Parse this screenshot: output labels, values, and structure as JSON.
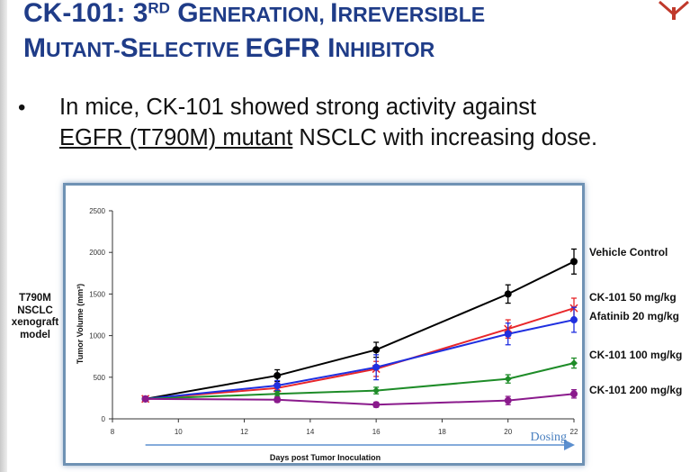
{
  "slide": {
    "title_prefix": "CK-101: 3",
    "title_sup": "RD",
    "title_line1_rest_big": " G",
    "title_line1_rest_small": "ENERATION, ",
    "title_line1_irr_big": "I",
    "title_line1_irr_small": "RREVERSIBLE",
    "title_line2_m_big": "M",
    "title_line2_m_small": "UTANT-",
    "title_line2_s_big": "S",
    "title_line2_s_small": "ELECTIVE ",
    "title_line2_egfr": "EGFR ",
    "title_line2_i_big": "I",
    "title_line2_i_small": "NHIBITOR",
    "bullet": "•",
    "bullet_text_1": "In mice, CK-101 showed strong activity against",
    "bullet_text_underlined": "EGFR (T790M) mutant",
    "bullet_text_2": " NSCLC with increasing dose.",
    "side_label_lines": [
      "T790M",
      "NSCLC",
      "xenograft",
      "model"
    ]
  },
  "chart_data": {
    "type": "line",
    "title": "",
    "xlabel": "Days post Tumor Inoculation",
    "ylabel": "Tumor Volume (mm³)",
    "xlim": [
      8,
      22
    ],
    "ylim": [
      0,
      2500
    ],
    "x_ticks": [
      8,
      10,
      12,
      14,
      16,
      18,
      20,
      22
    ],
    "y_ticks": [
      0,
      500,
      1000,
      1500,
      2000,
      2500
    ],
    "x": [
      9,
      13,
      16,
      20,
      22
    ],
    "series": [
      {
        "name": "Vehicle Control",
        "color": "#000000",
        "marker": "circle",
        "values": [
          240,
          520,
          830,
          1500,
          1890
        ],
        "errors": [
          20,
          70,
          90,
          110,
          150
        ]
      },
      {
        "name": "CK-101 50 mg/kg",
        "color": "#e8262a",
        "marker": "x",
        "values": [
          240,
          370,
          600,
          1080,
          1330
        ],
        "errors": [
          20,
          60,
          90,
          110,
          120
        ]
      },
      {
        "name": "Afatinib 20 mg/kg",
        "color": "#1f2fe0",
        "marker": "circle",
        "values": [
          240,
          400,
          620,
          1020,
          1190
        ],
        "errors": [
          20,
          60,
          150,
          130,
          150
        ]
      },
      {
        "name": "CK-101 100 mg/kg",
        "color": "#1e8c28",
        "marker": "diamond",
        "values": [
          240,
          300,
          340,
          480,
          670
        ],
        "errors": [
          15,
          30,
          40,
          50,
          60
        ]
      },
      {
        "name": "CK-101 200 mg/kg",
        "color": "#8a1a8c",
        "marker": "circle",
        "values": [
          240,
          230,
          170,
          220,
          300
        ],
        "errors": [
          15,
          30,
          30,
          50,
          50
        ]
      }
    ],
    "annotation": "Dosing",
    "dosing_range": [
      9,
      22
    ]
  }
}
